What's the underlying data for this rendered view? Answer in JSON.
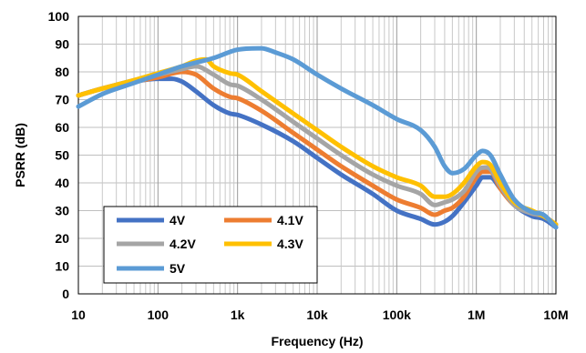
{
  "chart_data": {
    "type": "line",
    "xlabel": "Frequency (Hz)",
    "ylabel": "PSRR (dB)",
    "x_scale": "log",
    "xlim": [
      10,
      10000000
    ],
    "ylim": [
      0,
      100
    ],
    "grid": true,
    "legend_position": "bottom-left",
    "x_tick_labels": [
      {
        "value": 10,
        "label": "10"
      },
      {
        "value": 100,
        "label": "100"
      },
      {
        "value": 1000,
        "label": "1k"
      },
      {
        "value": 10000,
        "label": "10k"
      },
      {
        "value": 100000,
        "label": "100k"
      },
      {
        "value": 1000000,
        "label": "1M"
      },
      {
        "value": 10000000,
        "label": "10M"
      }
    ],
    "y_ticks": [
      0,
      10,
      20,
      30,
      40,
      50,
      60,
      70,
      80,
      90,
      100
    ],
    "series": [
      {
        "name": "4V",
        "color": "#4472C4",
        "points": [
          [
            10,
            71.5
          ],
          [
            20,
            74
          ],
          [
            50,
            76.5
          ],
          [
            100,
            77.5
          ],
          [
            150,
            77.5
          ],
          [
            200,
            76.5
          ],
          [
            300,
            73
          ],
          [
            500,
            68
          ],
          [
            800,
            65
          ],
          [
            1000,
            64.5
          ],
          [
            2000,
            61
          ],
          [
            5000,
            55
          ],
          [
            10000,
            49
          ],
          [
            20000,
            43
          ],
          [
            50000,
            36
          ],
          [
            100000,
            30
          ],
          [
            200000,
            27
          ],
          [
            300000,
            25
          ],
          [
            400000,
            26
          ],
          [
            500000,
            28
          ],
          [
            700000,
            33
          ],
          [
            1000000,
            39
          ],
          [
            1200000,
            42
          ],
          [
            1500000,
            42
          ],
          [
            2000000,
            38
          ],
          [
            3000000,
            32
          ],
          [
            5000000,
            28
          ],
          [
            7000000,
            27
          ],
          [
            10000000,
            24
          ]
        ]
      },
      {
        "name": "4.1V",
        "color": "#ED7D31",
        "points": [
          [
            10,
            71.5
          ],
          [
            20,
            74
          ],
          [
            50,
            76.5
          ],
          [
            100,
            78
          ],
          [
            200,
            80
          ],
          [
            300,
            79
          ],
          [
            500,
            74
          ],
          [
            800,
            71
          ],
          [
            1000,
            70.5
          ],
          [
            2000,
            66
          ],
          [
            5000,
            58
          ],
          [
            10000,
            52
          ],
          [
            20000,
            46
          ],
          [
            50000,
            39
          ],
          [
            100000,
            34
          ],
          [
            200000,
            31
          ],
          [
            300000,
            28.5
          ],
          [
            400000,
            30
          ],
          [
            500000,
            31
          ],
          [
            700000,
            35
          ],
          [
            1000000,
            42
          ],
          [
            1200000,
            44
          ],
          [
            1500000,
            44
          ],
          [
            2000000,
            38
          ],
          [
            3000000,
            32
          ],
          [
            5000000,
            29
          ],
          [
            7000000,
            28
          ],
          [
            10000000,
            25
          ]
        ]
      },
      {
        "name": "4.2V",
        "color": "#A5A5A5",
        "points": [
          [
            10,
            71.5
          ],
          [
            20,
            74
          ],
          [
            50,
            77
          ],
          [
            100,
            79
          ],
          [
            200,
            81
          ],
          [
            300,
            82
          ],
          [
            500,
            79
          ],
          [
            800,
            75.5
          ],
          [
            1000,
            75
          ],
          [
            2000,
            70
          ],
          [
            5000,
            62
          ],
          [
            10000,
            56
          ],
          [
            20000,
            50
          ],
          [
            50000,
            43
          ],
          [
            100000,
            39
          ],
          [
            200000,
            36
          ],
          [
            300000,
            32
          ],
          [
            400000,
            33
          ],
          [
            500000,
            34
          ],
          [
            700000,
            37
          ],
          [
            1000000,
            44
          ],
          [
            1200000,
            45.5
          ],
          [
            1500000,
            45
          ],
          [
            2000000,
            39
          ],
          [
            3000000,
            32
          ],
          [
            5000000,
            29
          ],
          [
            7000000,
            28
          ],
          [
            10000000,
            25
          ]
        ]
      },
      {
        "name": "4.3V",
        "color": "#FFC000",
        "points": [
          [
            10,
            71.5
          ],
          [
            20,
            74
          ],
          [
            50,
            77
          ],
          [
            100,
            79.5
          ],
          [
            200,
            82
          ],
          [
            300,
            84
          ],
          [
            400,
            84.5
          ],
          [
            500,
            82
          ],
          [
            800,
            79.5
          ],
          [
            1000,
            79
          ],
          [
            2000,
            73
          ],
          [
            5000,
            65
          ],
          [
            10000,
            59
          ],
          [
            20000,
            53
          ],
          [
            50000,
            46
          ],
          [
            100000,
            42
          ],
          [
            200000,
            39
          ],
          [
            300000,
            35
          ],
          [
            400000,
            35
          ],
          [
            500000,
            36
          ],
          [
            700000,
            40
          ],
          [
            1000000,
            46
          ],
          [
            1200000,
            47.5
          ],
          [
            1500000,
            46.5
          ],
          [
            2000000,
            40
          ],
          [
            3000000,
            33
          ],
          [
            5000000,
            30
          ],
          [
            7000000,
            28
          ],
          [
            10000000,
            25
          ]
        ]
      },
      {
        "name": "5V",
        "color": "#5B9BD5",
        "points": [
          [
            10,
            67.5
          ],
          [
            20,
            72
          ],
          [
            50,
            76
          ],
          [
            100,
            79
          ],
          [
            200,
            82
          ],
          [
            500,
            85
          ],
          [
            1000,
            88
          ],
          [
            2000,
            88.5
          ],
          [
            3000,
            87
          ],
          [
            5000,
            84.5
          ],
          [
            10000,
            79
          ],
          [
            20000,
            74
          ],
          [
            50000,
            68
          ],
          [
            100000,
            63
          ],
          [
            200000,
            59
          ],
          [
            300000,
            53
          ],
          [
            400000,
            46
          ],
          [
            500000,
            43.5
          ],
          [
            700000,
            45
          ],
          [
            1000000,
            50
          ],
          [
            1200000,
            51.5
          ],
          [
            1500000,
            50
          ],
          [
            2000000,
            43
          ],
          [
            3000000,
            34
          ],
          [
            5000000,
            29.5
          ],
          [
            7000000,
            28.5
          ],
          [
            10000000,
            24
          ]
        ]
      }
    ]
  }
}
